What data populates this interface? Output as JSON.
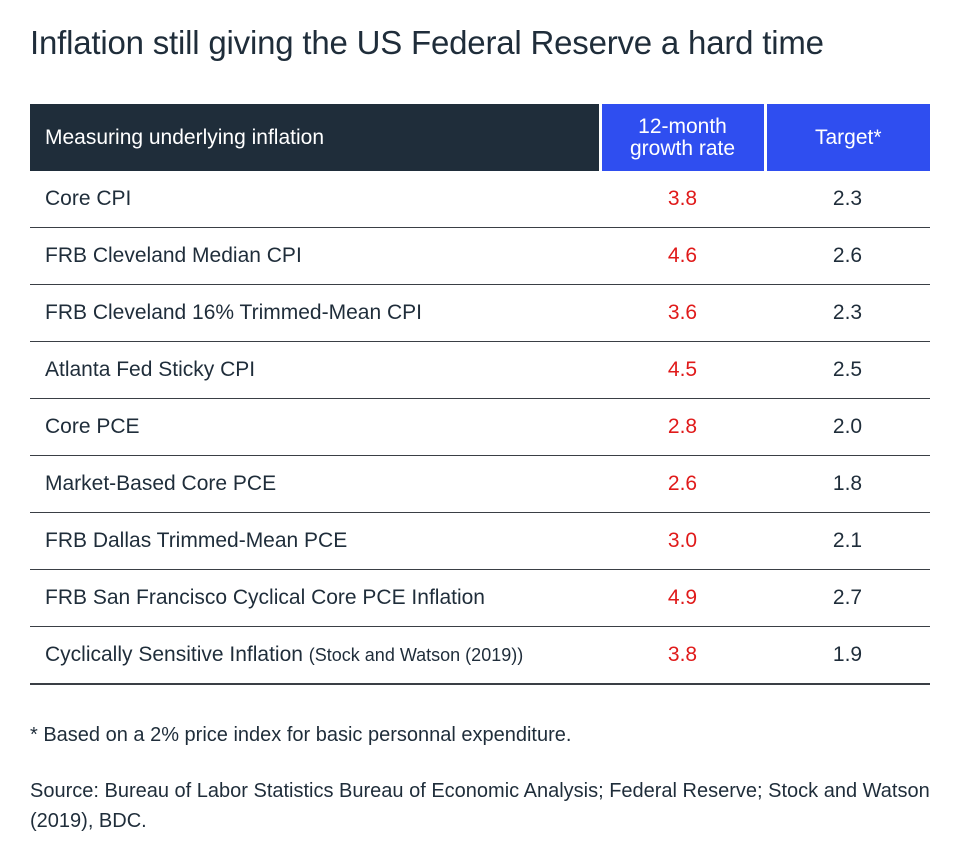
{
  "title": "Inflation still giving the US Federal Reserve a hard time",
  "chart_data": {
    "type": "table",
    "columns": [
      "Measuring underlying inflation",
      "12-month growth rate",
      "Target*"
    ],
    "header": {
      "name": "Measuring underlying inflation",
      "rate_line1": "12-month",
      "rate_line2": "growth rate",
      "target": "Target*"
    },
    "rows": [
      {
        "name": "Core CPI",
        "sub": "",
        "rate": "3.8",
        "target": "2.3"
      },
      {
        "name": "FRB Cleveland Median CPI",
        "sub": "",
        "rate": "4.6",
        "target": "2.6"
      },
      {
        "name": "FRB Cleveland 16% Trimmed-Mean CPI",
        "sub": "",
        "rate": "3.6",
        "target": "2.3"
      },
      {
        "name": "Atlanta Fed Sticky CPI",
        "sub": "",
        "rate": "4.5",
        "target": "2.5"
      },
      {
        "name": "Core PCE",
        "sub": "",
        "rate": "2.8",
        "target": "2.0"
      },
      {
        "name": "Market-Based Core PCE",
        "sub": "",
        "rate": "2.6",
        "target": "1.8"
      },
      {
        "name": "FRB Dallas Trimmed-Mean PCE",
        "sub": "",
        "rate": "3.0",
        "target": "2.1"
      },
      {
        "name": "FRB San Francisco Cyclical Core PCE Inflation",
        "sub": "",
        "rate": "4.9",
        "target": "2.7"
      },
      {
        "name": "Cyclically Sensitive Inflation",
        "sub": "(Stock and Watson (2019))",
        "rate": "3.8",
        "target": "1.9"
      }
    ]
  },
  "footnote": "* Based on a 2% price index for basic personnal expenditure.",
  "source": "Source: Bureau of Labor Statistics  Bureau of Economic Analysis; Federal Reserve; Stock and Watson (2019), BDC.",
  "colors": {
    "header_dark": "#1f2d3a",
    "header_blue": "#2f4ef0",
    "rate_red": "#e01a1a",
    "text": "#1f2d3a"
  }
}
